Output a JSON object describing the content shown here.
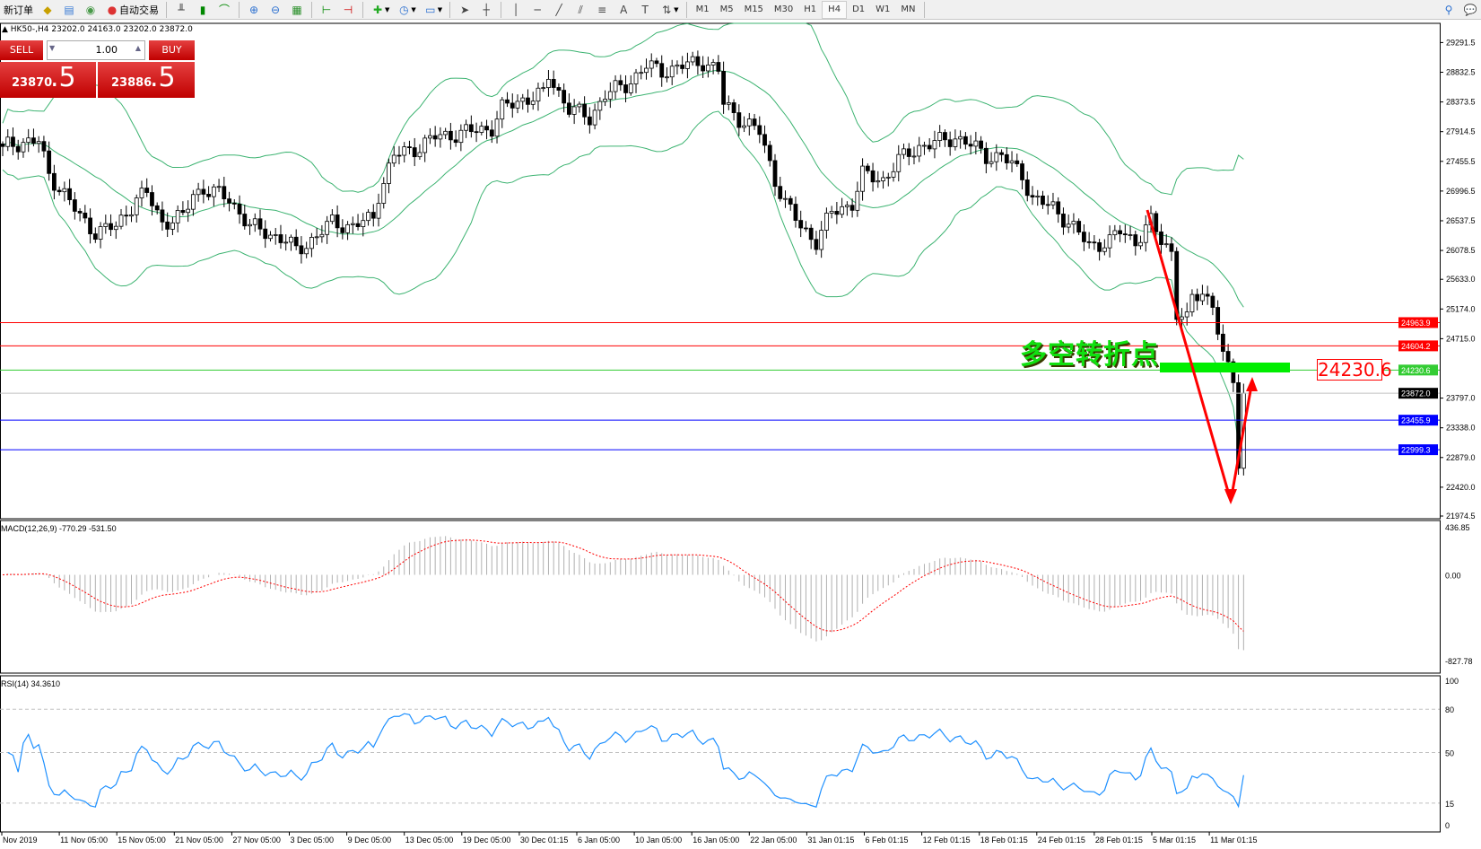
{
  "toolbar": {
    "new_order_label": "新订单",
    "auto_trading_label": "自动交易",
    "timeframes": [
      "M1",
      "M5",
      "M15",
      "M30",
      "H1",
      "H4",
      "D1",
      "W1",
      "MN"
    ],
    "active_timeframe": "H4"
  },
  "chart_info": "HK50-,H4  23202.0 24163.0 23202.0 23872.0",
  "trade_panel": {
    "sell_label": "SELL",
    "buy_label": "BUY",
    "lots": "1.00",
    "sell_price_main": "23870",
    "sell_price_big": ".5",
    "buy_price_main": "23886",
    "buy_price_big": ".5"
  },
  "annotation": {
    "text": "多空转折点",
    "level_label": "24230.6"
  },
  "colors": {
    "up_band": "#3cb371",
    "red_line": "#ff0000",
    "green_line": "#33cc33",
    "blue_line": "#0000ff",
    "rsi": "#1e90ff",
    "macd_signal": "#ff0000",
    "arrow": "#ff0000"
  },
  "chart_data": {
    "type": "candlestick",
    "close_path": [
      [
        0,
        27685
      ],
      [
        4,
        27758
      ],
      [
        7,
        27758
      ],
      [
        9,
        27247
      ],
      [
        12,
        26955
      ],
      [
        15,
        26589
      ],
      [
        18,
        26370
      ],
      [
        22,
        26443
      ],
      [
        26,
        26881
      ],
      [
        28,
        26955
      ],
      [
        31,
        26516
      ],
      [
        35,
        26589
      ],
      [
        37,
        26955
      ],
      [
        39,
        27028
      ],
      [
        44,
        26881
      ],
      [
        48,
        26443
      ],
      [
        51,
        26370
      ],
      [
        55,
        26224
      ],
      [
        57,
        26078
      ],
      [
        61,
        26297
      ],
      [
        64,
        26516
      ],
      [
        68,
        26443
      ],
      [
        72,
        26589
      ],
      [
        73,
        26955
      ],
      [
        76,
        27539
      ],
      [
        81,
        27685
      ],
      [
        84,
        27831
      ],
      [
        90,
        27904
      ],
      [
        95,
        27977
      ],
      [
        97,
        28269
      ],
      [
        101,
        28415
      ],
      [
        105,
        28488
      ],
      [
        106,
        28780
      ],
      [
        110,
        28269
      ],
      [
        114,
        28123
      ],
      [
        117,
        28488
      ],
      [
        121,
        28634
      ],
      [
        125,
        28926
      ],
      [
        128,
        28853
      ],
      [
        132,
        28926
      ],
      [
        136,
        28999
      ],
      [
        139,
        28853
      ],
      [
        140,
        28342
      ],
      [
        143,
        28123
      ],
      [
        147,
        27904
      ],
      [
        150,
        27174
      ],
      [
        152,
        26809
      ],
      [
        155,
        26443
      ],
      [
        158,
        26224
      ],
      [
        161,
        26662
      ],
      [
        165,
        26809
      ],
      [
        167,
        27247
      ],
      [
        171,
        27174
      ],
      [
        174,
        27466
      ],
      [
        178,
        27685
      ],
      [
        182,
        27758
      ],
      [
        185,
        27831
      ],
      [
        187,
        27758
      ],
      [
        191,
        27539
      ],
      [
        194,
        27539
      ],
      [
        198,
        27247
      ],
      [
        200,
        26881
      ],
      [
        204,
        26735
      ],
      [
        207,
        26516
      ],
      [
        211,
        26151
      ],
      [
        215,
        26224
      ],
      [
        217,
        26370
      ],
      [
        220,
        26224
      ],
      [
        223,
        26516
      ],
      [
        225,
        26224
      ],
      [
        227,
        26078
      ],
      [
        228,
        25129
      ],
      [
        230,
        24983
      ],
      [
        231,
        25348
      ],
      [
        233,
        25421
      ],
      [
        235,
        25275
      ],
      [
        237,
        24399
      ],
      [
        239,
        24107
      ],
      [
        240,
        22792
      ],
      [
        241,
        23872
      ]
    ],
    "last_ohlc": {
      "open": 23202.0,
      "high": 24163.0,
      "low": 23202.0,
      "close": 23872.0
    },
    "price_axis": [
      "29291.5",
      "28832.5",
      "28373.5",
      "27914.5",
      "27455.5",
      "26996.5",
      "26537.5",
      "26078.5",
      "25633.0",
      "25174.0",
      "24715.0",
      "23797.0",
      "23338.0",
      "22879.0",
      "22420.0",
      "21974.5"
    ],
    "ylim": [
      21974.5,
      29291.5
    ],
    "horizontal_levels": [
      {
        "price": "24963.9",
        "color": "#ff0000"
      },
      {
        "price": "24604.2",
        "color": "#ff0000"
      },
      {
        "price": "24230.6",
        "color": "#33cc33"
      },
      {
        "price": "23872.0",
        "color": "#000000"
      },
      {
        "price": "23455.9",
        "color": "#0000ff"
      },
      {
        "price": "22999.3",
        "color": "#0000ff"
      }
    ],
    "time_axis": [
      "Nov 2019",
      "11 Nov 05:00",
      "15 Nov 05:00",
      "21 Nov 05:00",
      "27 Nov 05:00",
      "3 Dec 05:00",
      "9 Dec 05:00",
      "13 Dec 05:00",
      "19 Dec 05:00",
      "30 Dec 01:15",
      "6 Jan 05:00",
      "10 Jan 05:00",
      "16 Jan 05:00",
      "22 Jan 05:00",
      "31 Jan 01:15",
      "6 Feb 01:15",
      "12 Feb 01:15",
      "18 Feb 01:15",
      "24 Feb 01:15",
      "28 Feb 01:15",
      "5 Mar 01:15",
      "11 Mar 01:15"
    ],
    "macd": {
      "label": "MACD(12,26,9) -770.29 -531.50",
      "axis": [
        "436.85",
        "0.00",
        "-827.78"
      ],
      "ylim": [
        -827.78,
        436.85
      ]
    },
    "rsi": {
      "label": "RSI(14) 34.3610",
      "axis": [
        "100",
        "80",
        "50",
        "15",
        "0"
      ],
      "levels": [
        80,
        50,
        15
      ],
      "ylim": [
        0,
        100
      ]
    }
  }
}
